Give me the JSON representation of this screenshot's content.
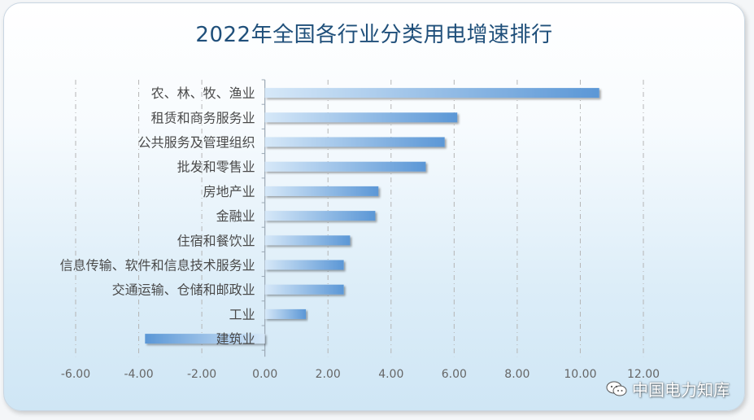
{
  "title": "2022年全国各行业分类用电增速排行",
  "watermark": "中国电力知库",
  "watermark_icon": "wechat-icon",
  "colors": {
    "bar_light": "#cfe3f6",
    "bar_dark": "#5e9ad8",
    "title": "#1f4f7a",
    "grid": "#b5b5b5"
  },
  "chart_data": {
    "type": "bar",
    "orientation": "horizontal",
    "categories": [
      "农、林、牧、渔业",
      "租赁和商务服务业",
      "公共服务及管理组织",
      "批发和零售业",
      "房地产业",
      "金融业",
      "住宿和餐饮业",
      "信息传输、软件和信息技术服务业",
      "交通运输、仓储和邮政业",
      "工业",
      "建筑业"
    ],
    "values": [
      10.6,
      6.1,
      5.7,
      5.1,
      3.6,
      3.5,
      2.7,
      2.5,
      2.5,
      1.3,
      -3.8
    ],
    "xlim": [
      -6,
      12
    ],
    "xticks": [
      "-6.00",
      "-4.00",
      "-2.00",
      "0.00",
      "2.00",
      "4.00",
      "6.00",
      "8.00",
      "10.00",
      "12.00"
    ],
    "grid": true,
    "legend": "none"
  }
}
